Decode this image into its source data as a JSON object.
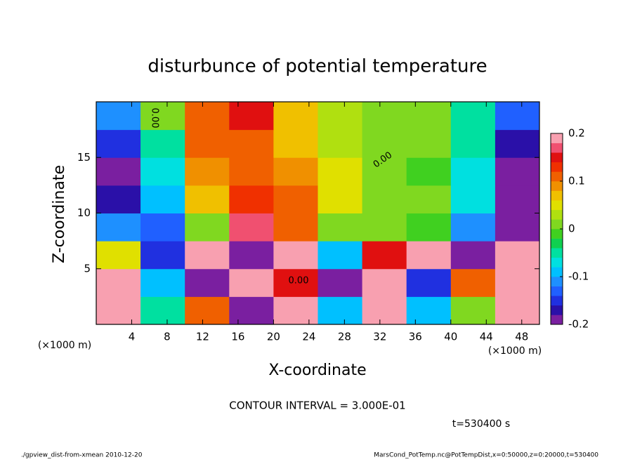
{
  "chart_data": {
    "type": "heatmap",
    "title": "disturbunce of potential temperature",
    "x_label": "X-coordinate",
    "y_label": "Z-coordinate",
    "x_unit": "(×1000 m)",
    "y_unit": "(×1000 m)",
    "contour_label": "0.00",
    "contour_interval": "CONTOUR INTERVAL = 3.000E-01",
    "time_label": "t=530400 s",
    "footer_left": "./gpview_dist-from-xmean  2010-12-20",
    "footer_right": "MarsCond_PotTemp.nc@PotTempDist,x=0:50000,z=0:20000,t=530400",
    "x": [
      2.5,
      7.5,
      12.5,
      17.5,
      22.5,
      27.5,
      32.5,
      37.5,
      42.5,
      47.5
    ],
    "z": [
      1.25,
      3.75,
      6.25,
      8.75,
      11.25,
      13.75,
      16.25,
      18.75
    ],
    "values": [
      [
        0.2,
        -0.05,
        0.1,
        -0.2,
        0.2,
        -0.1,
        0.2,
        -0.1,
        0.0,
        0.2
      ],
      [
        0.2,
        -0.1,
        -0.2,
        0.2,
        0.15,
        -0.2,
        0.2,
        -0.15,
        0.1,
        0.2
      ],
      [
        0.05,
        -0.15,
        0.2,
        -0.2,
        0.2,
        -0.1,
        0.15,
        0.2,
        -0.2,
        0.2
      ],
      [
        -0.12,
        -0.14,
        0.02,
        0.16,
        0.12,
        0.02,
        0.0,
        -0.02,
        -0.12,
        -0.2
      ],
      [
        -0.17,
        -0.1,
        0.06,
        0.13,
        0.1,
        0.04,
        0.01,
        0.0,
        -0.08,
        -0.2
      ],
      [
        -0.19,
        -0.08,
        0.08,
        0.12,
        0.09,
        0.04,
        0.01,
        -0.01,
        -0.08,
        -0.2
      ],
      [
        -0.16,
        -0.04,
        0.1,
        0.12,
        0.07,
        0.03,
        0.01,
        0.01,
        -0.06,
        -0.17
      ],
      [
        -0.12,
        0.0,
        0.12,
        0.14,
        0.06,
        0.03,
        0.01,
        0.0,
        -0.04,
        -0.13
      ]
    ],
    "xlim": [
      0,
      50
    ],
    "xticks": [
      4,
      8,
      12,
      16,
      20,
      24,
      28,
      32,
      36,
      40,
      44,
      48
    ],
    "ylim": [
      0,
      20
    ],
    "yticks": [
      5,
      10,
      15
    ],
    "clim": [
      -0.2,
      0.2
    ],
    "cticks": [
      -0.2,
      -0.1,
      0,
      0.1,
      0.2
    ],
    "colors": [
      "#7a1fa0",
      "#2a10a8",
      "#2030e0",
      "#2060ff",
      "#1e90ff",
      "#00c0ff",
      "#00e0e0",
      "#00e0a0",
      "#10d050",
      "#40d020",
      "#80d820",
      "#b0e010",
      "#e0e000",
      "#f0c000",
      "#f09000",
      "#f06000",
      "#f03000",
      "#e01010",
      "#f05070",
      "#f8a0b0"
    ]
  }
}
